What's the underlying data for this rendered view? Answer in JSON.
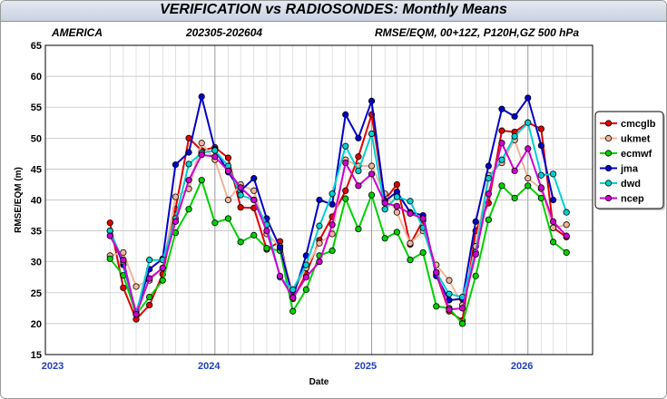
{
  "header": {
    "title": "VERIFICATION vs RADIOSONDES: Monthly Means",
    "region": "AMERICA",
    "period": "202305-202604",
    "settings": "RMSE/EQM, 00+12Z, P120H,GZ 500 hPa"
  },
  "chart_data": {
    "type": "line",
    "xlabel": "Date",
    "ylabel": "RMSE/EQM (m)",
    "ylim": [
      15,
      65
    ],
    "yticks": [
      15,
      20,
      25,
      30,
      35,
      40,
      45,
      50,
      55,
      60,
      65
    ],
    "x": [
      "2023-05",
      "2023-06",
      "2023-07",
      "2023-08",
      "2023-09",
      "2023-10",
      "2023-11",
      "2023-12",
      "2024-01",
      "2024-02",
      "2024-03",
      "2024-04",
      "2024-05",
      "2024-06",
      "2024-07",
      "2024-08",
      "2024-09",
      "2024-10",
      "2024-11",
      "2024-12",
      "2025-01",
      "2025-02",
      "2025-03",
      "2025-04",
      "2025-05",
      "2025-06",
      "2025-07",
      "2025-08",
      "2025-09",
      "2025-10",
      "2025-11",
      "2025-12",
      "2026-01",
      "2026-02",
      "2026-03",
      "2026-04"
    ],
    "xlim": [
      "2022-12-15",
      "2026-06-15"
    ],
    "year_labels": [
      {
        "label": "2023",
        "date": "2023-01-01"
      },
      {
        "label": "2024",
        "date": "2024-01-01"
      },
      {
        "label": "2025",
        "date": "2025-01-01"
      },
      {
        "label": "2026",
        "date": "2026-01-01"
      }
    ],
    "grid": true,
    "legend": "right",
    "series": [
      {
        "name": "cmcglb",
        "color": "#e00000",
        "values": [
          36.3,
          25.8,
          20.7,
          23.0,
          28.0,
          38.5,
          50.0,
          48.0,
          48.5,
          46.8,
          38.8,
          38.7,
          32.0,
          33.3,
          24.0,
          28.0,
          33.5,
          37.3,
          41.5,
          47.0,
          53.8,
          40.0,
          42.5,
          32.8,
          36.7,
          28.0,
          22.0,
          20.5,
          35.0,
          39.5,
          51.2,
          51.0,
          52.5,
          51.5,
          35.5,
          34.0
        ]
      },
      {
        "name": "ukmet",
        "color": "#f0b49a",
        "values": [
          31.0,
          31.5,
          26.0,
          27.0,
          29.0,
          40.5,
          41.8,
          49.2,
          46.5,
          40.0,
          42.5,
          41.5,
          34.5,
          32.5,
          25.0,
          29.0,
          33.0,
          34.5,
          46.5,
          45.5,
          45.5,
          41.0,
          38.0,
          33.0,
          35.0,
          29.5,
          27.0,
          23.0,
          32.5,
          44.0,
          46.0,
          49.7,
          43.5,
          41.8,
          35.5,
          36.0
        ]
      },
      {
        "name": "ecmwf",
        "color": "#00d000",
        "values": [
          30.5,
          27.8,
          21.5,
          24.3,
          27.0,
          34.7,
          38.5,
          43.2,
          36.3,
          37.0,
          33.2,
          34.3,
          32.2,
          31.8,
          22.0,
          25.5,
          31.0,
          31.8,
          40.2,
          35.3,
          40.8,
          33.8,
          34.8,
          30.3,
          31.5,
          22.8,
          22.5,
          20.0,
          27.7,
          36.8,
          42.3,
          40.3,
          42.3,
          40.3,
          33.2,
          31.5
        ]
      },
      {
        "name": "jma",
        "color": "#0000c8",
        "values": [
          35.0,
          29.5,
          21.8,
          28.8,
          30.5,
          45.7,
          47.7,
          56.7,
          48.2,
          44.5,
          41.5,
          43.5,
          37.0,
          32.3,
          24.3,
          31.0,
          40.0,
          39.3,
          53.8,
          50.0,
          56.0,
          39.8,
          41.3,
          38.0,
          37.5,
          27.7,
          23.8,
          24.0,
          36.5,
          45.5,
          54.7,
          53.5,
          56.5,
          48.8,
          40.0,
          null
        ]
      },
      {
        "name": "dwd",
        "color": "#00d0d0",
        "values": [
          35.0,
          30.0,
          21.5,
          30.3,
          30.3,
          37.0,
          45.8,
          47.6,
          48.0,
          45.5,
          40.8,
          40.0,
          36.0,
          27.5,
          25.5,
          29.5,
          35.8,
          41.0,
          48.7,
          44.7,
          50.7,
          38.5,
          40.5,
          39.8,
          35.5,
          28.3,
          24.8,
          24.3,
          31.5,
          43.5,
          46.5,
          50.3,
          52.5,
          44.0,
          44.2,
          38.0
        ]
      },
      {
        "name": "ncep",
        "color": "#d000d0",
        "values": [
          34.2,
          30.3,
          21.5,
          27.3,
          29.0,
          36.5,
          43.2,
          47.3,
          47.0,
          44.7,
          42.0,
          40.0,
          35.0,
          27.7,
          24.2,
          27.5,
          30.0,
          36.0,
          46.0,
          42.3,
          44.2,
          39.5,
          39.0,
          37.8,
          37.0,
          28.3,
          22.3,
          22.5,
          31.2,
          41.0,
          49.2,
          44.7,
          48.3,
          42.0,
          36.5,
          34.2
        ]
      }
    ]
  }
}
